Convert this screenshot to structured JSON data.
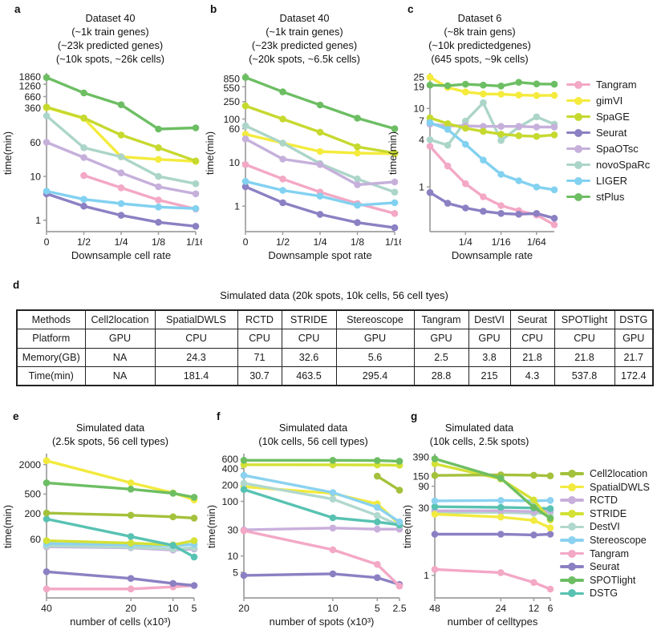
{
  "colors": {
    "tangram": "#F3A8C5",
    "gimvi": "#F4EB3D",
    "spage": "#C6D92F",
    "seurat": "#8C80C3",
    "spaotsc": "#C6B0DB",
    "novosparc": "#ACD5C9",
    "liger": "#82D1F0",
    "stplus": "#6DBE63",
    "cell2location": "#A4C13B",
    "spatialdwls": "#F2EA3E",
    "rctd": "#C9AFDC",
    "stride": "#D4E135",
    "destvi": "#B1D8CE",
    "stereoscope": "#8BD2F0",
    "spotlight": "#6DBE63",
    "dstg": "#58C2B2",
    "axis": "#9e9e9e",
    "text": "#1a1a1a"
  },
  "panels": {
    "a": {
      "label": "a",
      "title": "Dataset 40\n(~1k train genes)\n(~23k predicted genes)\n(~10k spots, ~26k cells)"
    },
    "b": {
      "label": "b",
      "title": "Dataset 40\n(~1k train genes)\n(~23k predicted genes)\n(~20k spots, ~6.5k cells)"
    },
    "c": {
      "label": "c",
      "title": "Dataset 6\n(~8k train gens)\n(~10k predictedgenes)\n(645 spots,  ~9k cells)"
    },
    "d": {
      "label": "d",
      "table_title": "Simulated data (20k spots, 10k cells, 56 cell tyes)"
    },
    "e": {
      "label": "e",
      "title": "Simulated data\n(2.5k spots, 56 cell types)"
    },
    "f": {
      "label": "f",
      "title": "Simulated data\n(10k cells, 56 cell types)"
    },
    "g": {
      "label": "g",
      "title": "Simulated data\n(10k cells, 2.5k spots)"
    }
  },
  "legend_abc": {
    "items": [
      {
        "label": "Tangram",
        "color": "tangram"
      },
      {
        "label": "gimVI",
        "color": "gimvi"
      },
      {
        "label": "SpaGE",
        "color": "spage"
      },
      {
        "label": "Seurat",
        "color": "seurat"
      },
      {
        "label": "SpaOTsc",
        "color": "spaotsc"
      },
      {
        "label": "novoSpaRc",
        "color": "novosparc"
      },
      {
        "label": "LIGER",
        "color": "liger"
      },
      {
        "label": "stPlus",
        "color": "stplus"
      }
    ]
  },
  "legend_efg": {
    "items": [
      {
        "label": "Cell2location",
        "color": "cell2location"
      },
      {
        "label": "SpatialDWLS",
        "color": "spatialdwls"
      },
      {
        "label": "RCTD",
        "color": "rctd"
      },
      {
        "label": "STRIDE",
        "color": "stride"
      },
      {
        "label": "DestVI",
        "color": "destvi"
      },
      {
        "label": "Stereoscope",
        "color": "stereoscope"
      },
      {
        "label": "Tangram",
        "color": "tangram"
      },
      {
        "label": "Seurat",
        "color": "seurat"
      },
      {
        "label": "SPOTlight",
        "color": "spotlight"
      },
      {
        "label": "DSTG",
        "color": "dstg"
      }
    ]
  },
  "table": {
    "title": "Simulated data (20k spots, 10k cells, 56 cell tyes)",
    "columns": [
      "Methods",
      "Cell2location",
      "SpatialDWLS",
      "RCTD",
      "STRIDE",
      "Stereoscope",
      "Tangram",
      "DestVI",
      "Seurat",
      "SPOTlight",
      "DSTG"
    ],
    "rows": [
      [
        "Platform",
        "GPU",
        "CPU",
        "CPU",
        "CPU",
        "GPU",
        "GPU",
        "GPU",
        "CPU",
        "CPU",
        "GPU"
      ],
      [
        "Memory(GB)",
        "NA",
        "24.3",
        "71",
        "32.6",
        "5.6",
        "2.5",
        "3.8",
        "21.8",
        "21.8",
        "21.7"
      ],
      [
        "Time(min)",
        "NA",
        "181.4",
        "30.7",
        "463.5",
        "295.4",
        "28.8",
        "215",
        "4.3",
        "537.8",
        "172.4"
      ]
    ]
  },
  "chart_data": [
    {
      "id": "a",
      "type": "line",
      "ylabel": "time(min)",
      "xlabel": "Downsample cell rate",
      "n_points": 5,
      "grid": false,
      "yscale": "log",
      "xticks": [
        {
          "i": 0,
          "label": "0"
        },
        {
          "i": 1,
          "label": "1/2"
        },
        {
          "i": 2,
          "label": "1/4"
        },
        {
          "i": 3,
          "label": "1/8"
        },
        {
          "i": 4,
          "label": "1/16"
        }
      ],
      "yticks": [
        1860,
        1260,
        660,
        360,
        60,
        10,
        1
      ],
      "ylim": [
        0.55,
        2100
      ],
      "series": [
        {
          "name": "gimVI",
          "color": "gimvi",
          "values": [
            370,
            210,
            28,
            24.5,
            22
          ]
        },
        {
          "name": "novoSpaRc",
          "color": "novosparc",
          "values": [
            240,
            45,
            28,
            10,
            6.8
          ]
        },
        {
          "name": "SpaOTsc",
          "color": "spaotsc",
          "values": [
            60,
            27,
            12,
            5.8,
            4.0
          ]
        },
        {
          "name": "Tangram",
          "color": "tangram",
          "values": [
            null,
            10.5,
            5.5,
            2.9,
            1.8
          ]
        },
        {
          "name": "Seurat",
          "color": "seurat",
          "values": [
            4.0,
            2.1,
            1.3,
            0.9,
            0.73
          ]
        },
        {
          "name": "LIGER",
          "color": "liger",
          "values": [
            4.6,
            3.0,
            2.4,
            2.0,
            1.85
          ]
        },
        {
          "name": "SpaGE",
          "color": "spage",
          "values": [
            380,
            215,
            88,
            45,
            22.5
          ]
        },
        {
          "name": "stPlus",
          "color": "stplus",
          "values": [
            1800,
            800,
            430,
            120,
            128
          ]
        }
      ]
    },
    {
      "id": "b",
      "type": "line",
      "ylabel": "time(min)",
      "xlabel": "Downsample spot rate",
      "n_points": 5,
      "grid": false,
      "yscale": "log",
      "xticks": [
        {
          "i": 0,
          "label": "0"
        },
        {
          "i": 1,
          "label": "1/2"
        },
        {
          "i": 2,
          "label": "1/4"
        },
        {
          "i": 3,
          "label": "1/8"
        },
        {
          "i": 4,
          "label": "1/16"
        }
      ],
      "yticks": [
        850,
        550,
        250,
        100,
        60,
        10,
        1
      ],
      "ylim": [
        0.26,
        1050
      ],
      "series": [
        {
          "name": "gimVI",
          "color": "gimvi",
          "values": [
            45,
            28,
            18,
            16.5,
            16
          ]
        },
        {
          "name": "novoSpaRc",
          "color": "novosparc",
          "values": [
            70,
            28,
            9.5,
            4.2,
            2.1
          ]
        },
        {
          "name": "SpaOTsc",
          "color": "spaotsc",
          "values": [
            35,
            12,
            9,
            3.1,
            3.6
          ]
        },
        {
          "name": "Tangram",
          "color": "tangram",
          "values": [
            9,
            4.2,
            2.1,
            1.15,
            0.68
          ]
        },
        {
          "name": "Seurat",
          "color": "seurat",
          "values": [
            2.8,
            1.2,
            0.65,
            0.42,
            0.32
          ]
        },
        {
          "name": "LIGER",
          "color": "liger",
          "values": [
            3.7,
            2.3,
            1.7,
            1.05,
            1.2
          ]
        },
        {
          "name": "SpaGE",
          "color": "spage",
          "values": [
            200,
            100,
            50,
            23,
            16.5
          ]
        },
        {
          "name": "stPlus",
          "color": "stplus",
          "values": [
            900,
            420,
            210,
            105,
            60
          ]
        }
      ]
    },
    {
      "id": "c",
      "type": "line",
      "ylabel": "time(min)",
      "xlabel": "Downsample rate",
      "n_points": 8,
      "grid": false,
      "yscale": "log",
      "xticks": [
        {
          "i": 2,
          "label": "1/4"
        },
        {
          "i": 4,
          "label": "1/16"
        },
        {
          "i": 6,
          "label": "1/64"
        }
      ],
      "yticks": [
        25,
        19,
        10,
        7,
        4,
        1
      ],
      "ylim": [
        0.27,
        27
      ],
      "series": [
        {
          "name": "novoSpaRc",
          "color": "novosparc",
          "values": [
            4.0,
            3.4,
            6.9,
            11.8,
            3.9,
            5.8,
            7.8,
            6.3
          ]
        },
        {
          "name": "SpaOTsc",
          "color": "spaotsc",
          "values": [
            6.3,
            6.0,
            6.0,
            5.9,
            5.9,
            5.9,
            5.8,
            5.8
          ]
        },
        {
          "name": "SpaGE",
          "color": "spage",
          "values": [
            7.6,
            6.4,
            5.6,
            5.1,
            4.7,
            4.5,
            4.4,
            4.6
          ]
        },
        {
          "name": "LIGER",
          "color": "liger",
          "values": [
            6.6,
            5.4,
            3.5,
            2.2,
            1.45,
            1.2,
            1.0,
            0.92
          ]
        },
        {
          "name": "Tangram",
          "color": "tangram",
          "values": [
            3.3,
            1.85,
            1.1,
            0.75,
            0.58,
            0.5,
            0.44,
            0.33
          ]
        },
        {
          "name": "Seurat",
          "color": "seurat",
          "values": [
            0.85,
            0.62,
            0.54,
            0.49,
            0.46,
            0.45,
            0.46,
            0.4
          ]
        },
        {
          "name": "gimVI",
          "color": "gimvi",
          "values": [
            25,
            18.5,
            16.2,
            15.3,
            15.2,
            14.8,
            14.6,
            14.7
          ]
        },
        {
          "name": "stPlus",
          "color": "stplus",
          "values": [
            19.8,
            19.5,
            20.3,
            19.8,
            19.3,
            21.5,
            20.5,
            20.3
          ]
        }
      ]
    },
    {
      "id": "e",
      "type": "line",
      "ylabel": "time(min)",
      "xlabel": "number of cells (x10³)",
      "n_points": 4,
      "grid": false,
      "yscale": "log",
      "x_values": [
        40,
        20,
        10,
        5
      ],
      "xticks": [
        {
          "i": 0,
          "label": "40"
        },
        {
          "i": 1,
          "label": "20"
        },
        {
          "i": 2,
          "label": "10"
        },
        {
          "i": 3,
          "label": "5"
        }
      ],
      "yticks": [
        2000,
        500,
        200,
        60
      ],
      "ylim": [
        3.8,
        3100
      ],
      "series": [
        {
          "name": "RCTD",
          "color": "rctd",
          "values": [
            42,
            40,
            36,
            38
          ]
        },
        {
          "name": "DestVI",
          "color": "destvi",
          "values": [
            44,
            41,
            38,
            40
          ]
        },
        {
          "name": "Stereoscope",
          "color": "stereoscope",
          "values": [
            49,
            46,
            44,
            47
          ]
        },
        {
          "name": "STRIDE",
          "color": "stride",
          "values": [
            56,
            50,
            46,
            56
          ]
        },
        {
          "name": "DSTG",
          "color": "dstg",
          "values": [
            155,
            68,
            45,
            26
          ]
        },
        {
          "name": "Cell2location",
          "color": "cell2location",
          "values": [
            205,
            185,
            172,
            162
          ]
        },
        {
          "name": "Tangram",
          "color": "tangram",
          "values": [
            5.8,
            5.8,
            6.4,
            6.8
          ]
        },
        {
          "name": "Seurat",
          "color": "seurat",
          "values": [
            13,
            9.5,
            7.5,
            6.8
          ]
        },
        {
          "name": "SpatialDWLS",
          "color": "spatialdwls",
          "values": [
            2400,
            850,
            530,
            380
          ]
        },
        {
          "name": "SPOTlight",
          "color": "spotlight",
          "values": [
            850,
            630,
            520,
            430
          ]
        }
      ]
    },
    {
      "id": "f",
      "type": "line",
      "ylabel": "time(min)",
      "xlabel": "number of spots (x10³)",
      "n_points": 4,
      "grid": false,
      "yscale": "log",
      "x_values": [
        20,
        10,
        5,
        2.5
      ],
      "xticks": [
        {
          "i": 0,
          "label": "20"
        },
        {
          "i": 1,
          "label": "10"
        },
        {
          "i": 2,
          "label": "5"
        },
        {
          "i": 3,
          "label": "2.5"
        }
      ],
      "yticks": [
        600,
        400,
        200,
        100,
        30,
        10,
        5
      ],
      "ylim": [
        1.7,
        700
      ],
      "series": [
        {
          "name": "RCTD",
          "color": "rctd",
          "values": [
            30,
            32.5,
            31,
            31
          ]
        },
        {
          "name": "Seurat",
          "color": "seurat",
          "values": [
            4.4,
            4.7,
            4.0,
            3.0
          ]
        },
        {
          "name": "Tangram",
          "color": "tangram",
          "values": [
            29,
            13,
            7,
            2.8
          ]
        },
        {
          "name": "SpatialDWLS",
          "color": "spatialdwls",
          "values": [
            185,
            140,
            90,
            38
          ]
        },
        {
          "name": "DestVI",
          "color": "destvi",
          "values": [
            215,
            110,
            55,
            36
          ]
        },
        {
          "name": "DSTG",
          "color": "dstg",
          "values": [
            165,
            50,
            42,
            37
          ]
        },
        {
          "name": "Stereoscope",
          "color": "stereoscope",
          "values": [
            300,
            145,
            78,
            42
          ]
        },
        {
          "name": "Cell2location",
          "color": "cell2location",
          "values": [
            null,
            null,
            290,
            160
          ]
        },
        {
          "name": "STRIDE",
          "color": "stride",
          "values": [
            470,
            468,
            465,
            458
          ]
        },
        {
          "name": "SPOTlight",
          "color": "spotlight",
          "values": [
            565,
            565,
            560,
            545
          ]
        }
      ]
    },
    {
      "id": "g",
      "type": "line",
      "ylabel": "time(min)",
      "xlabel": "number of celltypes",
      "n_points": 4,
      "grid": false,
      "yscale": "log",
      "x_values": [
        48,
        24,
        12,
        6
      ],
      "xticks": [
        {
          "i": 0,
          "label": "48"
        },
        {
          "i": 1,
          "label": "24"
        },
        {
          "i": 2,
          "label": "12"
        },
        {
          "i": 3,
          "label": "6"
        }
      ],
      "yticks": [
        390,
        150,
        90,
        30,
        1
      ],
      "ylim": [
        0.32,
        430
      ],
      "series": [
        {
          "name": "DestVI",
          "color": "destvi",
          "values": [
            24,
            24,
            23,
            23
          ]
        },
        {
          "name": "RCTD",
          "color": "rctd",
          "values": [
            26,
            26,
            25,
            26
          ]
        },
        {
          "name": "DSTG",
          "color": "dstg",
          "values": [
            32,
            31,
            30,
            29
          ]
        },
        {
          "name": "Stereoscope",
          "color": "stereoscope",
          "values": [
            43,
            44,
            43,
            44
          ]
        },
        {
          "name": "Seurat",
          "color": "seurat",
          "values": [
            8,
            8,
            7.7,
            8
          ]
        },
        {
          "name": "Tangram",
          "color": "tangram",
          "values": [
            1.35,
            1.15,
            0.7,
            0.5
          ]
        },
        {
          "name": "SpatialDWLS",
          "color": "spatialdwls",
          "values": [
            22,
            19,
            16,
            11
          ]
        },
        {
          "name": "STRIDE",
          "color": "stride",
          "values": [
            280,
            130,
            45,
            16.5
          ]
        },
        {
          "name": "Cell2location",
          "color": "cell2location",
          "values": [
            155,
            160,
            157,
            152
          ]
        },
        {
          "name": "SPOTlight",
          "color": "spotlight",
          "values": [
            360,
            135,
            31,
            18
          ]
        }
      ]
    }
  ]
}
